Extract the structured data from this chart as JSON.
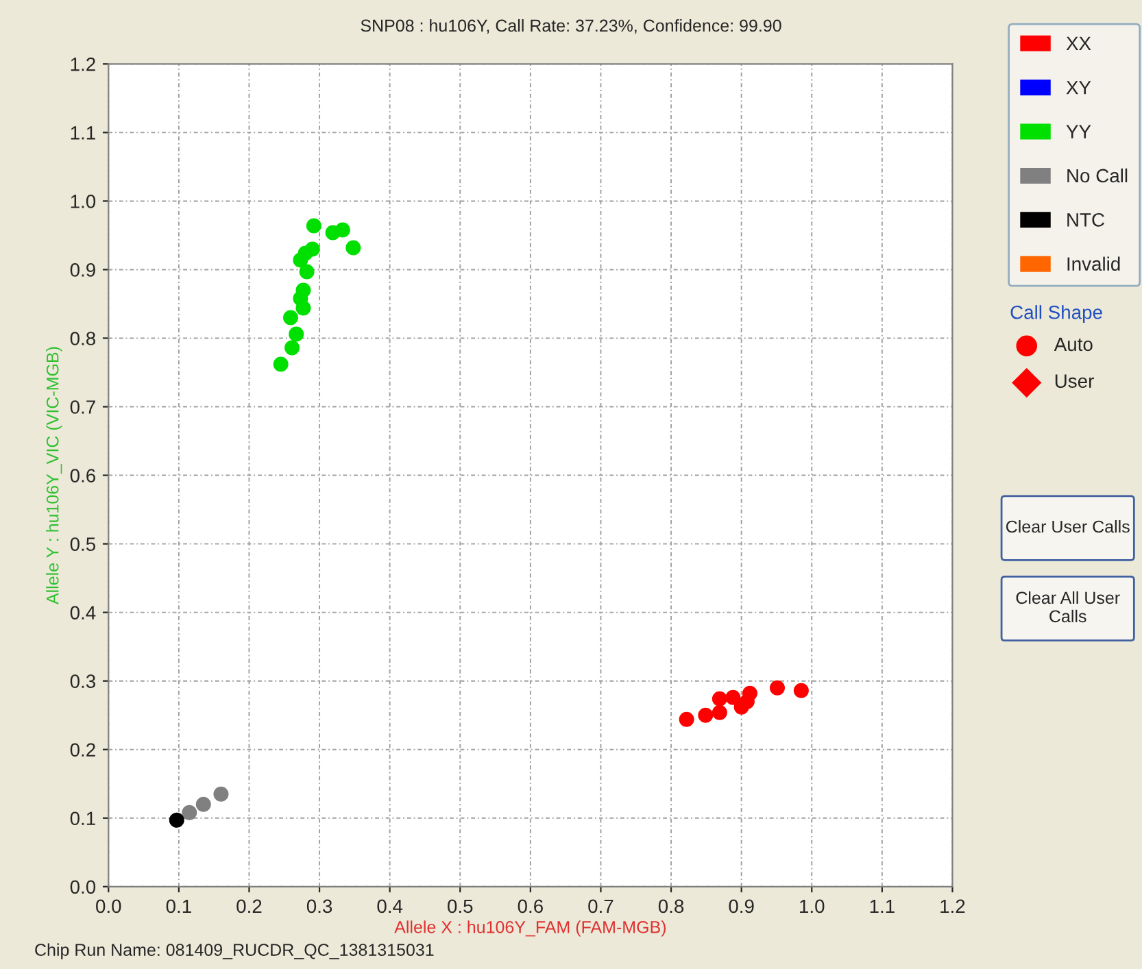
{
  "chart_data": {
    "type": "scatter",
    "title": "SNP08 : hu106Y, Call Rate: 37.23%, Confidence: 99.90",
    "xlabel": "Allele X : hu106Y_FAM (FAM-MGB)",
    "ylabel": "Allele Y : hu106Y_VIC (VIC-MGB)",
    "xlim": [
      0,
      1.2
    ],
    "ylim": [
      0,
      1.2
    ],
    "xticks": [
      {
        "value": 0,
        "label": "0.0"
      },
      {
        "value": 0.1,
        "label": "0.1"
      },
      {
        "value": 0.2,
        "label": "0.2"
      },
      {
        "value": 0.3,
        "label": "0.3"
      },
      {
        "value": 0.4,
        "label": "0.4"
      },
      {
        "value": 0.5,
        "label": "0.5"
      },
      {
        "value": 0.6,
        "label": "0.6"
      },
      {
        "value": 0.7,
        "label": "0.7"
      },
      {
        "value": 0.8,
        "label": "0.8"
      },
      {
        "value": 0.9,
        "label": "0.9"
      },
      {
        "value": 1.0,
        "label": "1.0"
      },
      {
        "value": 1.1,
        "label": "1.1"
      },
      {
        "value": 1.2,
        "label": "1.2"
      }
    ],
    "yticks": [
      {
        "value": 0,
        "label": "0.0"
      },
      {
        "value": 0.1,
        "label": "0.1"
      },
      {
        "value": 0.2,
        "label": "0.2"
      },
      {
        "value": 0.3,
        "label": "0.3"
      },
      {
        "value": 0.4,
        "label": "0.4"
      },
      {
        "value": 0.5,
        "label": "0.5"
      },
      {
        "value": 0.6,
        "label": "0.6"
      },
      {
        "value": 0.7,
        "label": "0.7"
      },
      {
        "value": 0.8,
        "label": "0.8"
      },
      {
        "value": 0.9,
        "label": "0.9"
      },
      {
        "value": 1.0,
        "label": "1.0"
      },
      {
        "value": 1.1,
        "label": "1.1"
      },
      {
        "value": 1.2,
        "label": "1.2"
      }
    ],
    "grid": true,
    "legend": "right",
    "marker": "circle",
    "series": [
      {
        "name": "XX",
        "color": "#ff0000",
        "x": [
          0.822,
          0.849,
          0.869,
          0.869,
          0.888,
          0.9,
          0.908,
          0.912,
          0.951,
          0.985
        ],
        "values": [
          0.244,
          0.25,
          0.254,
          0.274,
          0.276,
          0.262,
          0.27,
          0.282,
          0.29,
          0.286
        ]
      },
      {
        "name": "XY",
        "color": "#0000ff"
      },
      {
        "name": "YY",
        "color": "#00e000",
        "x": [
          0.292,
          0.319,
          0.333,
          0.348,
          0.29,
          0.28,
          0.273,
          0.282,
          0.277,
          0.273,
          0.277,
          0.259,
          0.267,
          0.261,
          0.245
        ],
        "values": [
          0.964,
          0.954,
          0.958,
          0.932,
          0.93,
          0.924,
          0.914,
          0.897,
          0.87,
          0.858,
          0.844,
          0.83,
          0.806,
          0.786,
          0.762
        ]
      },
      {
        "name": "No Call",
        "color": "#808080",
        "x": [
          0.115,
          0.135,
          0.16
        ],
        "values": [
          0.108,
          0.12,
          0.135
        ]
      },
      {
        "name": "NTC",
        "color": "#000000",
        "x": [
          0.097
        ],
        "values": [
          0.097
        ]
      },
      {
        "name": "Invalid",
        "color": "#ff6600"
      }
    ],
    "annotations": [
      "Call Shape",
      "Auto",
      "User",
      "Clear User Calls",
      "Clear All User Calls",
      "Chip Run Name: 081409_RUCDR_QC_1381315031"
    ]
  }
}
